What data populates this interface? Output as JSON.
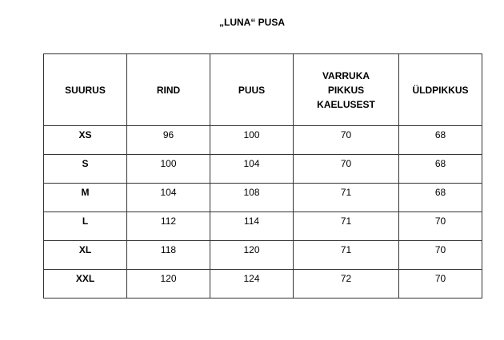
{
  "title": "„LUNA“ PUSA",
  "table": {
    "headers": [
      "SUURUS",
      "RIND",
      "PUUS",
      "VARRUKA PIKKUS KAELUSEST",
      "ÜLDPIKKUS"
    ],
    "rows": [
      [
        "XS",
        "96",
        "100",
        "70",
        "68"
      ],
      [
        "S",
        "100",
        "104",
        "70",
        "68"
      ],
      [
        "M",
        "104",
        "108",
        "71",
        "68"
      ],
      [
        "L",
        "112",
        "114",
        "71",
        "70"
      ],
      [
        "XL",
        "118",
        "120",
        "71",
        "70"
      ],
      [
        "XXL",
        "120",
        "124",
        "72",
        "70"
      ]
    ]
  }
}
